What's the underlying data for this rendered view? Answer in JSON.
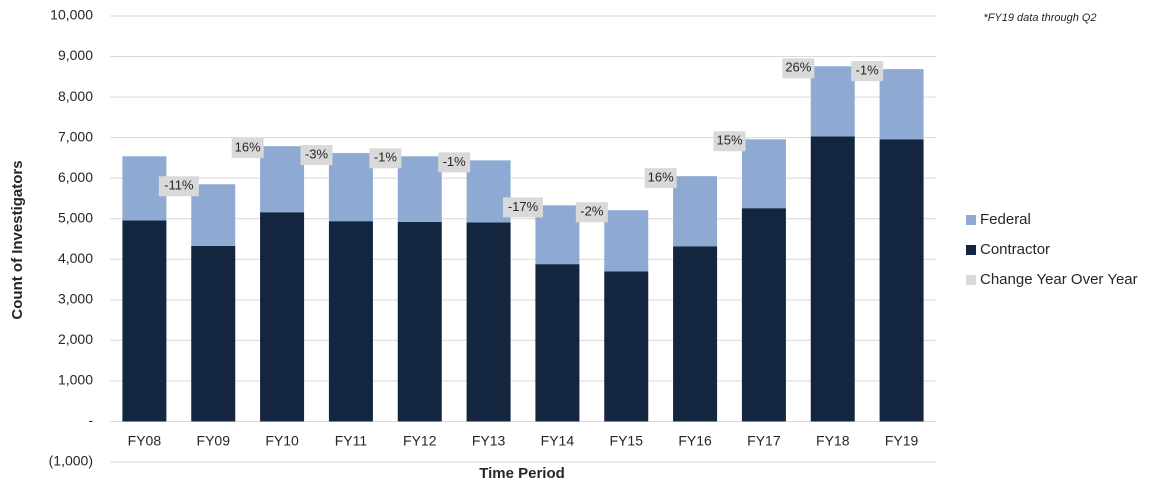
{
  "chart_data": {
    "type": "stacked_bar",
    "note": "*FY19 data through Q2",
    "x_label": "Time Period",
    "y_label": "Count of Investigators",
    "categories": [
      "FY08",
      "FY09",
      "FY10",
      "FY11",
      "FY12",
      "FY13",
      "FY14",
      "FY15",
      "FY16",
      "FY17",
      "FY18",
      "FY19"
    ],
    "series": [
      {
        "name": "Contractor",
        "color": "#13253f",
        "values": [
          4960,
          4330,
          5160,
          4940,
          4920,
          4910,
          3880,
          3700,
          4320,
          5260,
          7030,
          6960
        ]
      },
      {
        "name": "Federal",
        "color": "#8faad2",
        "values": [
          1580,
          1520,
          1630,
          1680,
          1620,
          1530,
          1450,
          1510,
          1730,
          1700,
          1730,
          1730
        ]
      },
      {
        "name": "Change Year Over Year",
        "color": "#d9d9d9",
        "values": [
          null,
          -11,
          16,
          -3,
          -1,
          -1,
          -17,
          -2,
          16,
          15,
          26,
          -1
        ],
        "value_labels": [
          null,
          "-11%",
          "16%",
          "-3%",
          "-1%",
          "-1%",
          "-17%",
          "-2%",
          "16%",
          "15%",
          "26%",
          "-1%"
        ]
      }
    ],
    "legend_order": [
      "Federal",
      "Contractor",
      "Change Year Over Year"
    ],
    "ylim": [
      -1000,
      10000
    ],
    "yticks": [
      {
        "value": -1000,
        "label": "(1,000)"
      },
      {
        "value": 0,
        "label": "-"
      },
      {
        "value": 1000,
        "label": "1,000"
      },
      {
        "value": 2000,
        "label": "2,000"
      },
      {
        "value": 3000,
        "label": "3,000"
      },
      {
        "value": 4000,
        "label": "4,000"
      },
      {
        "value": 5000,
        "label": "5,000"
      },
      {
        "value": 6000,
        "label": "6,000"
      },
      {
        "value": 7000,
        "label": "7,000"
      },
      {
        "value": 8000,
        "label": "8,000"
      },
      {
        "value": 9000,
        "label": "9,000"
      },
      {
        "value": 10000,
        "label": "10,000"
      }
    ],
    "grid": true,
    "legend": "right"
  }
}
